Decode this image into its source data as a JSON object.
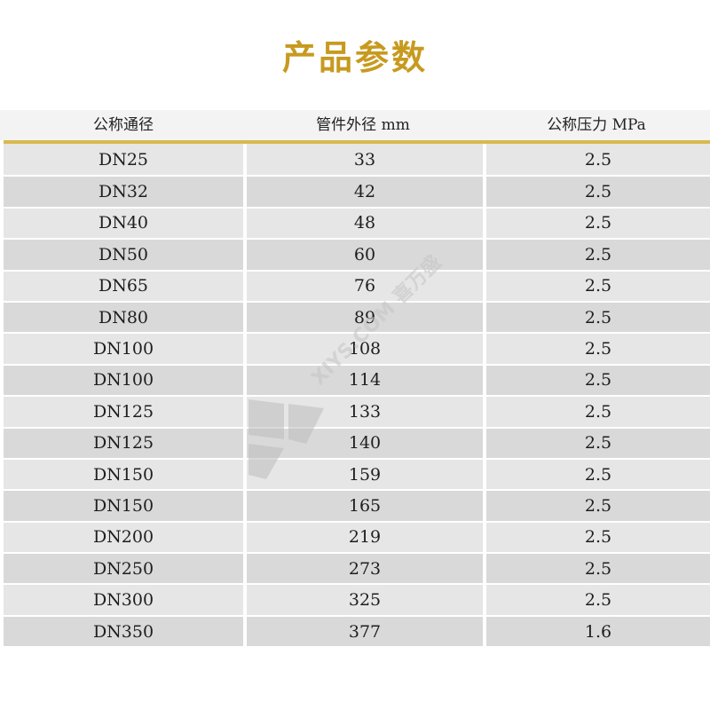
{
  "title": "产品参数",
  "headers": [
    "公称通径",
    "管件外径 mm",
    "公称压力 MPa"
  ],
  "rows": [
    [
      "DN25",
      "33",
      "2.5"
    ],
    [
      "DN32",
      "42",
      "2.5"
    ],
    [
      "DN40",
      "48",
      "2.5"
    ],
    [
      "DN50",
      "60",
      "2.5"
    ],
    [
      "DN65",
      "76",
      "2.5"
    ],
    [
      "DN80",
      "89",
      "2.5"
    ],
    [
      "DN100",
      "108",
      "2.5"
    ],
    [
      "DN100",
      "114",
      "2.5"
    ],
    [
      "DN125",
      "133",
      "2.5"
    ],
    [
      "DN125",
      "140",
      "2.5"
    ],
    [
      "DN150",
      "159",
      "2.5"
    ],
    [
      "DN150",
      "165",
      "2.5"
    ],
    [
      "DN200",
      "219",
      "2.5"
    ],
    [
      "DN250",
      "273",
      "2.5"
    ],
    [
      "DN300",
      "325",
      "2.5"
    ],
    [
      "DN350",
      "377",
      "1.6"
    ]
  ],
  "watermark": {
    "text": "XIYS.COM 喜万盛"
  },
  "colors": {
    "title": "#c79a1f",
    "rule": "#d8b94e",
    "row_light": "#e6e6e6",
    "row_dark": "#d9d9d9"
  }
}
